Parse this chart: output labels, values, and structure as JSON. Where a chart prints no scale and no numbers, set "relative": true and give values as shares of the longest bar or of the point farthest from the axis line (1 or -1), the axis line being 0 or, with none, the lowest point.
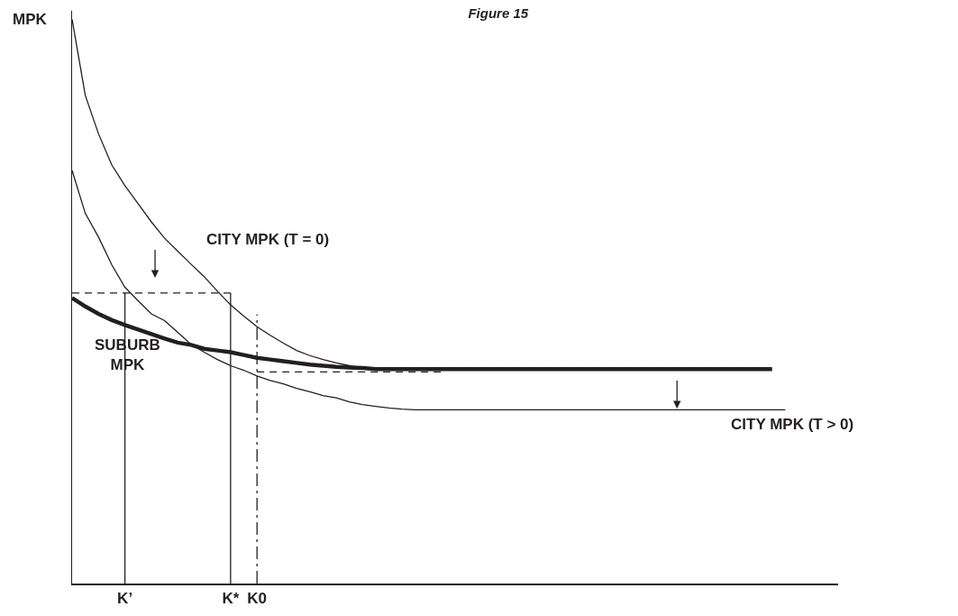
{
  "chart_data": {
    "type": "line",
    "title": "Figure 15",
    "ylabel": "MPK",
    "relative": true,
    "categories": [
      null,
      null,
      null,
      null,
      "K’",
      null,
      null,
      null,
      null,
      null,
      null,
      null,
      "K*",
      null,
      "K0",
      null,
      null,
      null,
      null,
      null,
      null,
      null,
      null,
      null,
      null,
      null,
      null,
      null,
      null,
      null,
      null,
      null,
      null,
      null,
      null,
      null,
      null,
      null,
      null,
      null,
      null,
      null,
      null,
      null,
      null,
      null,
      null,
      null,
      null,
      null,
      null,
      null,
      null,
      null,
      null,
      null,
      null,
      null,
      null
    ],
    "grid": false,
    "legend": false,
    "marker": "none",
    "series": [
      {
        "name": "CITY MPK (T = 0)",
        "color": "#231f20",
        "line_style": "solid",
        "values": [
          1.0,
          0.865,
          0.797,
          0.742,
          0.705,
          0.673,
          0.641,
          0.612,
          0.589,
          0.566,
          0.544,
          0.518,
          0.494,
          0.474,
          0.455,
          0.44,
          0.426,
          0.413,
          0.404,
          0.397,
          0.391,
          0.386,
          0.382,
          null,
          null,
          null,
          null,
          null,
          null,
          null,
          null,
          null,
          null,
          null,
          null,
          null,
          null,
          null,
          null,
          null,
          null,
          null,
          null,
          null,
          null,
          null,
          null,
          null,
          null,
          null,
          null,
          null,
          null,
          null,
          null,
          null,
          null,
          null,
          null
        ]
      },
      {
        "name": "CITY MPK (T > 0)",
        "color": "#231f20",
        "line_style": "solid",
        "values": [
          0.732,
          0.656,
          0.614,
          0.565,
          0.525,
          0.501,
          0.478,
          0.466,
          0.445,
          0.424,
          0.41,
          0.397,
          0.386,
          0.378,
          0.368,
          0.36,
          0.354,
          0.346,
          0.34,
          0.333,
          0.329,
          0.322,
          0.317,
          0.314,
          0.311,
          0.309,
          0.308,
          0.308,
          0.308,
          0.308,
          0.308,
          0.308,
          0.308,
          0.308,
          0.308,
          0.308,
          0.308,
          0.308,
          0.308,
          0.308,
          0.308,
          0.308,
          0.308,
          0.308,
          0.308,
          0.308,
          0.308,
          0.308,
          0.308,
          0.308,
          0.308,
          0.308,
          0.308,
          0.308,
          0.308,
          null,
          null,
          null,
          null
        ]
      },
      {
        "name": "SUBURB MPK",
        "color": "#231f20",
        "line_style": "solid",
        "values": [
          0.506,
          0.491,
          0.478,
          0.467,
          0.458,
          0.45,
          0.442,
          0.434,
          0.427,
          0.423,
          0.416,
          0.413,
          0.41,
          0.405,
          0.4,
          0.397,
          0.394,
          0.391,
          0.388,
          0.386,
          0.384,
          0.383,
          0.382,
          0.38,
          0.38,
          0.38,
          0.38,
          0.38,
          0.38,
          0.38,
          0.38,
          0.38,
          0.38,
          0.38,
          0.38,
          0.38,
          0.38,
          0.38,
          0.38,
          0.38,
          0.38,
          0.38,
          0.38,
          0.38,
          0.38,
          0.38,
          0.38,
          0.38,
          0.38,
          0.38,
          0.38,
          0.38,
          0.38,
          0.38,
          null,
          null,
          null,
          null,
          null
        ]
      },
      {
        "color": "#231f20",
        "line_style": "dashed",
        "values": [
          0.515,
          0.515,
          0.515,
          0.515,
          0.515,
          0.515,
          0.515,
          0.515,
          0.515,
          0.515,
          0.515,
          0.515,
          0.515,
          null,
          null,
          null,
          null,
          null,
          null,
          null,
          null,
          null,
          null,
          null,
          null,
          null,
          null,
          null,
          null,
          null,
          null,
          null,
          null,
          null,
          null,
          null,
          null,
          null,
          null,
          null,
          null,
          null,
          null,
          null,
          null,
          null,
          null,
          null,
          null,
          null,
          null,
          null,
          null,
          null,
          null,
          null,
          null,
          null,
          null
        ]
      },
      {
        "color": "#231f20",
        "line_style": "dashed",
        "values": [
          null,
          null,
          null,
          null,
          null,
          null,
          null,
          null,
          null,
          null,
          null,
          null,
          null,
          null,
          0.375,
          0.375,
          0.375,
          0.375,
          0.375,
          0.375,
          0.375,
          0.375,
          0.375,
          0.375,
          0.375,
          0.375,
          0.375,
          0.375,
          0.375,
          null,
          null,
          null,
          null,
          null,
          null,
          null,
          null,
          null,
          null,
          null,
          null,
          null,
          null,
          null,
          null,
          null,
          null,
          null,
          null,
          null,
          null,
          null,
          null,
          null,
          null,
          null,
          null,
          null,
          null
        ]
      },
      {
        "color": "#231f20",
        "line_style": "solid",
        "x": [
          "K’",
          "K’"
        ],
        "values": [
          0,
          0.515
        ]
      },
      {
        "color": "#231f20",
        "line_style": "solid",
        "x": [
          "K*",
          "K*"
        ],
        "values": [
          0,
          0.515
        ]
      },
      {
        "color": "#231f20",
        "line_style": "dashdot",
        "x": [
          "K0",
          "K0"
        ],
        "values": [
          0,
          0.477
        ]
      }
    ]
  }
}
